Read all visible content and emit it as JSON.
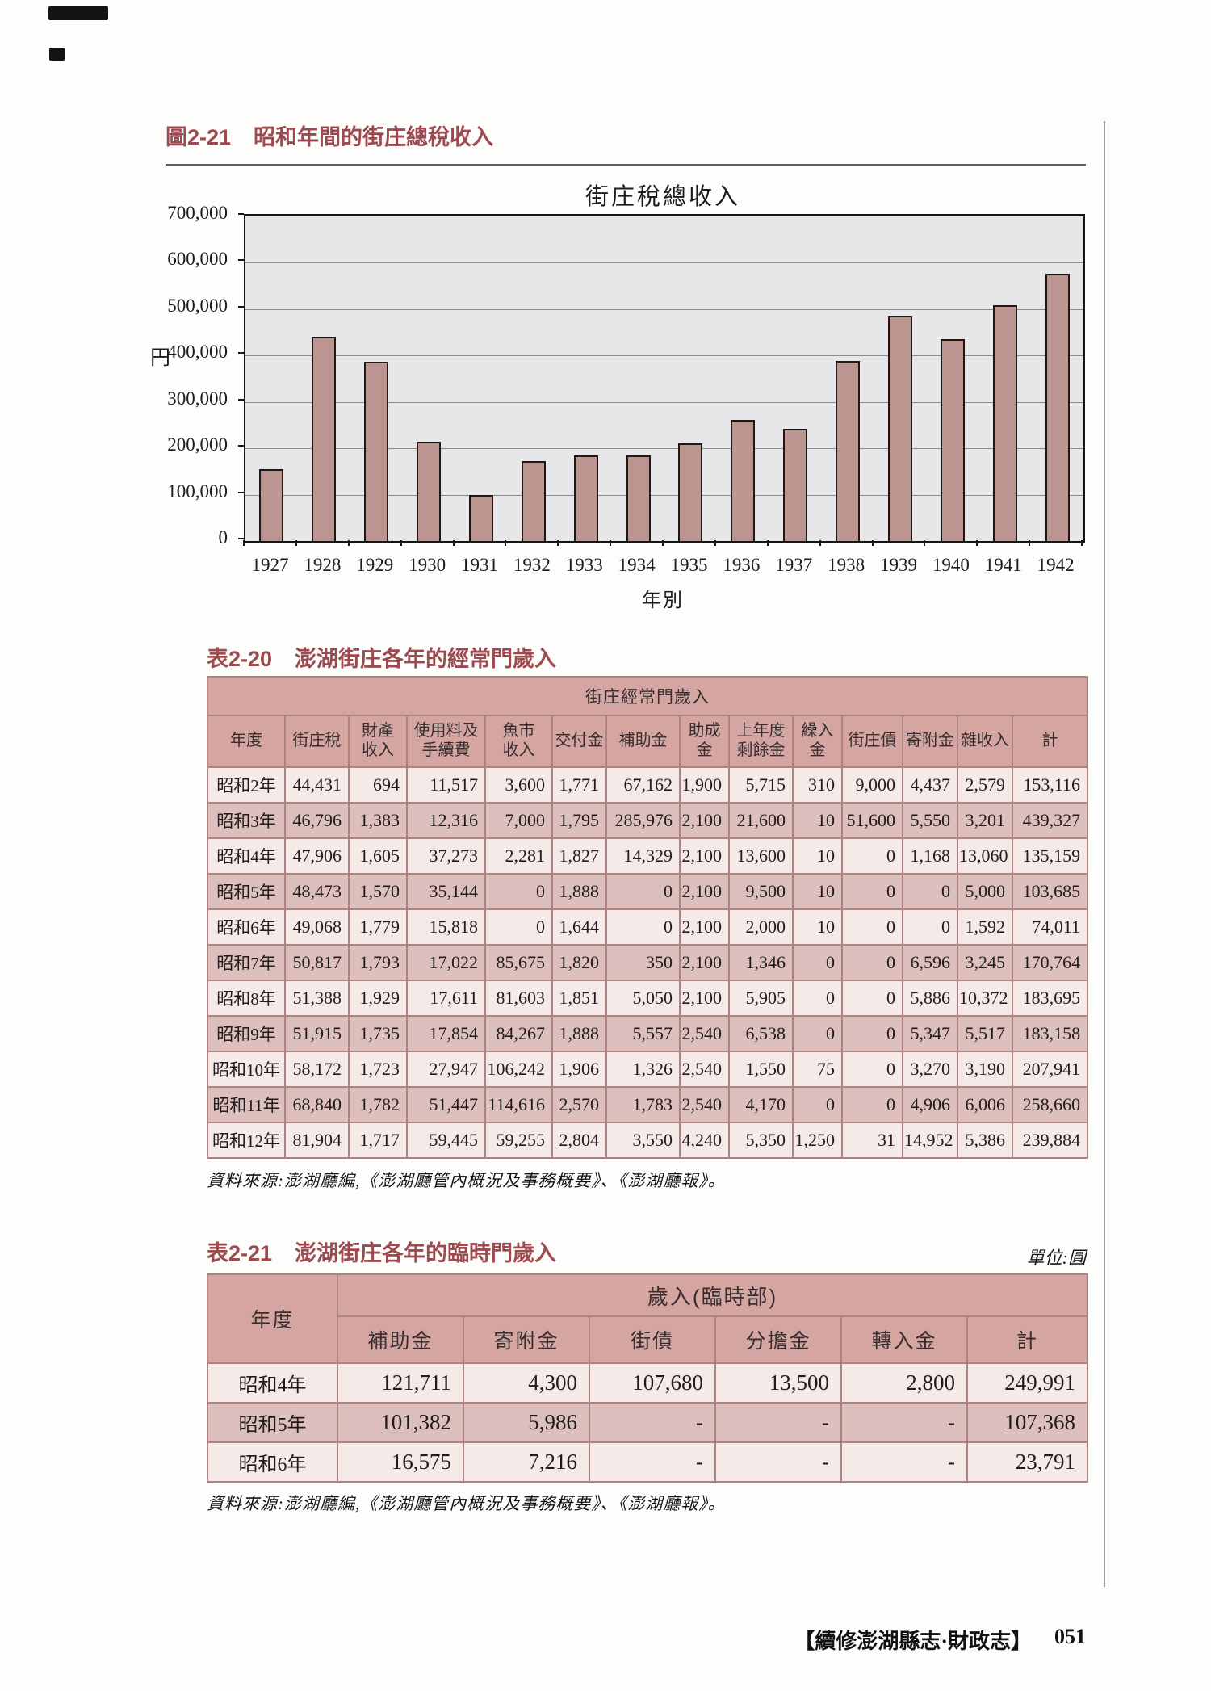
{
  "figure": {
    "heading_label": "圖2-21",
    "heading_title": "昭和年間的街庄總稅收入"
  },
  "chart_data": {
    "type": "bar",
    "title": "街庄稅總收入",
    "xlabel": "年別",
    "ylabel": "円",
    "categories": [
      "1927",
      "1928",
      "1929",
      "1930",
      "1931",
      "1932",
      "1933",
      "1934",
      "1935",
      "1936",
      "1937",
      "1938",
      "1939",
      "1940",
      "1941",
      "1942"
    ],
    "values": [
      155000,
      440000,
      387000,
      214000,
      100000,
      173000,
      185000,
      184000,
      211000,
      261000,
      242000,
      389000,
      485000,
      436000,
      508000,
      576000
    ],
    "ylim": [
      0,
      700000
    ],
    "ytick_step": 100000,
    "grid": true,
    "legend": "none",
    "bar_color": "#bc9490",
    "plot_bg": "#e7e6e8"
  },
  "table1": {
    "heading_label": "表2-20",
    "heading_title": "澎湖街庄各年的經常門歲入",
    "group_header": "街庄經常門歲入",
    "columns": [
      "年度",
      "街庄稅",
      "財產\n收入",
      "使用料及\n手續費",
      "魚市\n收入",
      "交付金",
      "補助金",
      "助成金",
      "上年度\n剩餘金",
      "繰入金",
      "街庄債",
      "寄附金",
      "雜收入",
      "計"
    ],
    "rows": [
      [
        "昭和2年",
        "44,431",
        "694",
        "11,517",
        "3,600",
        "1,771",
        "67,162",
        "1,900",
        "5,715",
        "310",
        "9,000",
        "4,437",
        "2,579",
        "153,116"
      ],
      [
        "昭和3年",
        "46,796",
        "1,383",
        "12,316",
        "7,000",
        "1,795",
        "285,976",
        "2,100",
        "21,600",
        "10",
        "51,600",
        "5,550",
        "3,201",
        "439,327"
      ],
      [
        "昭和4年",
        "47,906",
        "1,605",
        "37,273",
        "2,281",
        "1,827",
        "14,329",
        "2,100",
        "13,600",
        "10",
        "0",
        "1,168",
        "13,060",
        "135,159"
      ],
      [
        "昭和5年",
        "48,473",
        "1,570",
        "35,144",
        "0",
        "1,888",
        "0",
        "2,100",
        "9,500",
        "10",
        "0",
        "0",
        "5,000",
        "103,685"
      ],
      [
        "昭和6年",
        "49,068",
        "1,779",
        "15,818",
        "0",
        "1,644",
        "0",
        "2,100",
        "2,000",
        "10",
        "0",
        "0",
        "1,592",
        "74,011"
      ],
      [
        "昭和7年",
        "50,817",
        "1,793",
        "17,022",
        "85,675",
        "1,820",
        "350",
        "2,100",
        "1,346",
        "0",
        "0",
        "6,596",
        "3,245",
        "170,764"
      ],
      [
        "昭和8年",
        "51,388",
        "1,929",
        "17,611",
        "81,603",
        "1,851",
        "5,050",
        "2,100",
        "5,905",
        "0",
        "0",
        "5,886",
        "10,372",
        "183,695"
      ],
      [
        "昭和9年",
        "51,915",
        "1,735",
        "17,854",
        "84,267",
        "1,888",
        "5,557",
        "2,540",
        "6,538",
        "0",
        "0",
        "5,347",
        "5,517",
        "183,158"
      ],
      [
        "昭和10年",
        "58,172",
        "1,723",
        "27,947",
        "106,242",
        "1,906",
        "1,326",
        "2,540",
        "1,550",
        "75",
        "0",
        "3,270",
        "3,190",
        "207,941"
      ],
      [
        "昭和11年",
        "68,840",
        "1,782",
        "51,447",
        "114,616",
        "2,570",
        "1,783",
        "2,540",
        "4,170",
        "0",
        "0",
        "4,906",
        "6,006",
        "258,660"
      ],
      [
        "昭和12年",
        "81,904",
        "1,717",
        "59,445",
        "59,255",
        "2,804",
        "3,550",
        "4,240",
        "5,350",
        "1,250",
        "31",
        "14,952",
        "5,386",
        "239,884"
      ]
    ],
    "source": "資料來源:澎湖廳編,《澎湖廳管內概況及事務概要》、《澎湖廳報》。"
  },
  "table2": {
    "heading_label": "表2-21",
    "heading_title": "澎湖街庄各年的臨時門歲入",
    "unit_note": "單位:圓",
    "year_col": "年度",
    "group_header": "歲入(臨時部)",
    "columns": [
      "補助金",
      "寄附金",
      "街債",
      "分擔金",
      "轉入金",
      "計"
    ],
    "rows": [
      [
        "昭和4年",
        "121,711",
        "4,300",
        "107,680",
        "13,500",
        "2,800",
        "249,991"
      ],
      [
        "昭和5年",
        "101,382",
        "5,986",
        "-",
        "-",
        "-",
        "107,368"
      ],
      [
        "昭和6年",
        "16,575",
        "7,216",
        "-",
        "-",
        "-",
        "23,791"
      ]
    ],
    "source": "資料來源:澎湖廳編,《澎湖廳管內概況及事務概要》、《澎湖廳報》。"
  },
  "page": {
    "footer_title": "【續修澎湖縣志·財政志】",
    "page_number": "051"
  }
}
